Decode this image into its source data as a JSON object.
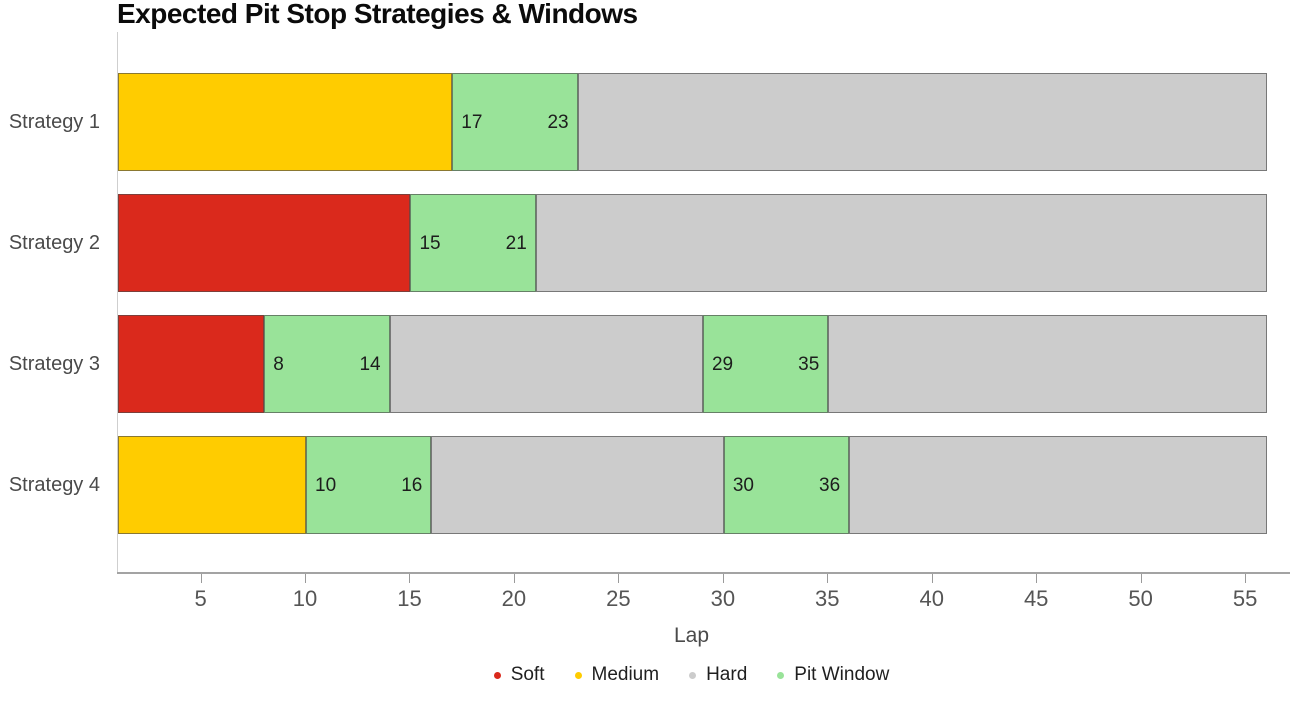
{
  "chart_data": {
    "type": "bar",
    "orientation": "horizontal",
    "title": "Expected Pit Stop Strategies & Windows",
    "xlabel": "Lap",
    "xlim": [
      1,
      56
    ],
    "x_ticks": [
      5,
      10,
      15,
      20,
      25,
      30,
      35,
      40,
      45,
      50,
      55
    ],
    "grid": false,
    "legend_position": "bottom-center",
    "categories": [
      "Strategy 1",
      "Strategy 2",
      "Strategy 3",
      "Strategy 4"
    ],
    "legend": [
      {
        "label": "Soft",
        "color": "#DA291C"
      },
      {
        "label": "Medium",
        "color": "#FFCC00"
      },
      {
        "label": "Hard",
        "color": "#CCCCCC"
      },
      {
        "label": "Pit Window",
        "color": "#99E399"
      }
    ],
    "bars": [
      {
        "category": "Strategy 1",
        "segments": [
          {
            "type": "Medium",
            "start": 1,
            "end": 17
          },
          {
            "type": "Pit Window",
            "start": 17,
            "end": 23,
            "labels": [
              17,
              23
            ]
          },
          {
            "type": "Hard",
            "start": 23,
            "end": 56
          }
        ]
      },
      {
        "category": "Strategy 2",
        "segments": [
          {
            "type": "Soft",
            "start": 1,
            "end": 15
          },
          {
            "type": "Pit Window",
            "start": 15,
            "end": 21,
            "labels": [
              15,
              21
            ]
          },
          {
            "type": "Hard",
            "start": 21,
            "end": 56
          }
        ]
      },
      {
        "category": "Strategy 3",
        "segments": [
          {
            "type": "Soft",
            "start": 1,
            "end": 8
          },
          {
            "type": "Pit Window",
            "start": 8,
            "end": 14,
            "labels": [
              8,
              14
            ]
          },
          {
            "type": "Hard",
            "start": 14,
            "end": 29
          },
          {
            "type": "Pit Window",
            "start": 29,
            "end": 35,
            "labels": [
              29,
              35
            ]
          },
          {
            "type": "Hard",
            "start": 35,
            "end": 56
          }
        ]
      },
      {
        "category": "Strategy 4",
        "segments": [
          {
            "type": "Medium",
            "start": 1,
            "end": 10
          },
          {
            "type": "Pit Window",
            "start": 10,
            "end": 16,
            "labels": [
              10,
              16
            ]
          },
          {
            "type": "Hard",
            "start": 16,
            "end": 30
          },
          {
            "type": "Pit Window",
            "start": 30,
            "end": 36,
            "labels": [
              30,
              36
            ]
          },
          {
            "type": "Hard",
            "start": 36,
            "end": 56
          }
        ]
      }
    ]
  }
}
